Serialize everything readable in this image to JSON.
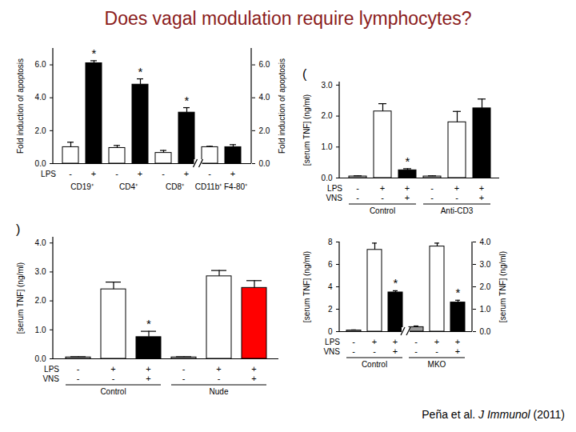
{
  "title": "Does vagal modulation require lymphocytes?",
  "source": {
    "authors": "Peña et al.",
    "journal": "J Immunol",
    "year_text": "(2011)"
  },
  "chart_data": [
    {
      "type": "bar",
      "panel": "",
      "categories": [
        null,
        null,
        null,
        null,
        null,
        null,
        null,
        null
      ],
      "values": [
        1.0,
        6.1,
        0.95,
        4.8,
        0.65,
        3.1,
        1.0,
        1.0
      ],
      "errors": [
        0.3,
        0.15,
        0.15,
        0.35,
        0.15,
        0.3,
        0.05,
        0.15
      ],
      "colors": [
        "#ffffff",
        "#000000",
        "#ffffff",
        "#000000",
        "#ffffff",
        "#000000",
        "#ffffff",
        "#000000"
      ],
      "axis": [
        "y",
        "y",
        "y",
        "y",
        "y",
        "y",
        "y2",
        "y2"
      ],
      "ylim": [
        0,
        7
      ],
      "yticks": [
        0,
        2,
        4,
        6
      ],
      "ylabel": "Fold induction of apoptosis",
      "y2lim": [
        0,
        7
      ],
      "y2ticks": [
        0,
        2,
        4,
        6
      ],
      "y2label": "Fold induction of apoptosis",
      "rows": [
        {
          "label": "LPS",
          "signs": [
            "-",
            "+",
            "-",
            "+",
            "-",
            "+",
            "-",
            "+"
          ]
        }
      ],
      "groups": [
        {
          "label": "CD19⁺",
          "bars": [
            0,
            1
          ]
        },
        {
          "label": "CD4⁺",
          "bars": [
            2,
            3
          ]
        },
        {
          "label": "CD8⁺",
          "bars": [
            4,
            5
          ]
        },
        {
          "label": "CD11b⁺ F4-80⁺",
          "bars": [
            6,
            7
          ]
        }
      ],
      "annotations": [
        {
          "bar": 1,
          "text": "*"
        },
        {
          "bar": 3,
          "text": "*"
        },
        {
          "bar": 5,
          "text": "*"
        }
      ]
    },
    {
      "type": "bar",
      "panel": "(",
      "categories": [
        null,
        null,
        null,
        null,
        null,
        null
      ],
      "values": [
        0.05,
        2.15,
        0.25,
        0.05,
        1.8,
        2.25
      ],
      "errors": [
        0.02,
        0.25,
        0.05,
        0.02,
        0.35,
        0.3
      ],
      "colors": [
        "#ffffff",
        "#ffffff",
        "#000000",
        "#ffffff",
        "#ffffff",
        "#000000"
      ],
      "ylim": [
        0,
        3.1
      ],
      "yticks": [
        0,
        1,
        2,
        3
      ],
      "ylabel": "[serum TNF] (ng/ml)",
      "rows": [
        {
          "label": "LPS",
          "signs": [
            "-",
            "+",
            "+",
            "-",
            "+",
            "+"
          ]
        },
        {
          "label": "VNS",
          "signs": [
            "-",
            "-",
            "+",
            "-",
            "-",
            "+"
          ]
        }
      ],
      "groups": [
        {
          "label": "Control",
          "bars": [
            0,
            1,
            2
          ]
        },
        {
          "label": "Anti-CD3",
          "bars": [
            3,
            4,
            5
          ]
        }
      ],
      "annotations": [
        {
          "bar": 2,
          "text": "*"
        }
      ]
    },
    {
      "type": "bar",
      "panel": ")",
      "categories": [
        null,
        null,
        null,
        null,
        null,
        null
      ],
      "values": [
        0.05,
        2.4,
        0.75,
        0.05,
        2.85,
        2.45
      ],
      "errors": [
        0.02,
        0.25,
        0.2,
        0.02,
        0.2,
        0.25
      ],
      "colors": [
        "#ffffff",
        "#ffffff",
        "#000000",
        "#ffffff",
        "#ffffff",
        "#ff0000"
      ],
      "ylim": [
        0,
        4.2
      ],
      "yticks": [
        0,
        1,
        2,
        3,
        4
      ],
      "ylabel": "[serum TNF] (ng/ml)",
      "rows": [
        {
          "label": "LPS",
          "signs": [
            "-",
            "+",
            "+",
            "-",
            "+",
            "+"
          ]
        },
        {
          "label": "VNS",
          "signs": [
            "-",
            "-",
            "+",
            "-",
            "-",
            "+"
          ]
        }
      ],
      "groups": [
        {
          "label": "Control",
          "bars": [
            0,
            1,
            2
          ]
        },
        {
          "label": "Nude",
          "bars": [
            3,
            4,
            5
          ]
        }
      ],
      "annotations": [
        {
          "bar": 2,
          "text": "*"
        }
      ]
    },
    {
      "type": "bar",
      "panel": "",
      "categories": [
        null,
        null,
        null,
        null,
        null,
        null
      ],
      "values": [
        0.1,
        7.3,
        3.5,
        0.2,
        3.8,
        1.3
      ],
      "errors": [
        0.05,
        0.6,
        0.15,
        0.05,
        0.15,
        0.1
      ],
      "colors": [
        "#ffffff",
        "#ffffff",
        "#000000",
        "#9a9a9a",
        "#ffffff",
        "#000000"
      ],
      "axis": [
        "y",
        "y",
        "y",
        "y2",
        "y2",
        "y2"
      ],
      "ylim": [
        0,
        8
      ],
      "yticks": [
        0,
        2,
        4,
        6,
        8
      ],
      "ylabel": "[serum TNF] (ng/ml)",
      "y2lim": [
        0,
        4
      ],
      "y2ticks": [
        0,
        1,
        2,
        3,
        4
      ],
      "y2label": "[serum TNF] (ng/ml)",
      "rows": [
        {
          "label": "LPS",
          "signs": [
            "-",
            "+",
            "+",
            "-",
            "+",
            "+"
          ]
        },
        {
          "label": "VNS",
          "signs": [
            "-",
            "-",
            "+",
            "-",
            "-",
            "+"
          ]
        }
      ],
      "groups": [
        {
          "label": "Control",
          "bars": [
            0,
            1,
            2
          ]
        },
        {
          "label": "MKO",
          "bars": [
            3,
            4,
            5
          ]
        }
      ],
      "annotations": [
        {
          "bar": 2,
          "text": "*"
        },
        {
          "bar": 5,
          "text": "*"
        }
      ]
    }
  ]
}
